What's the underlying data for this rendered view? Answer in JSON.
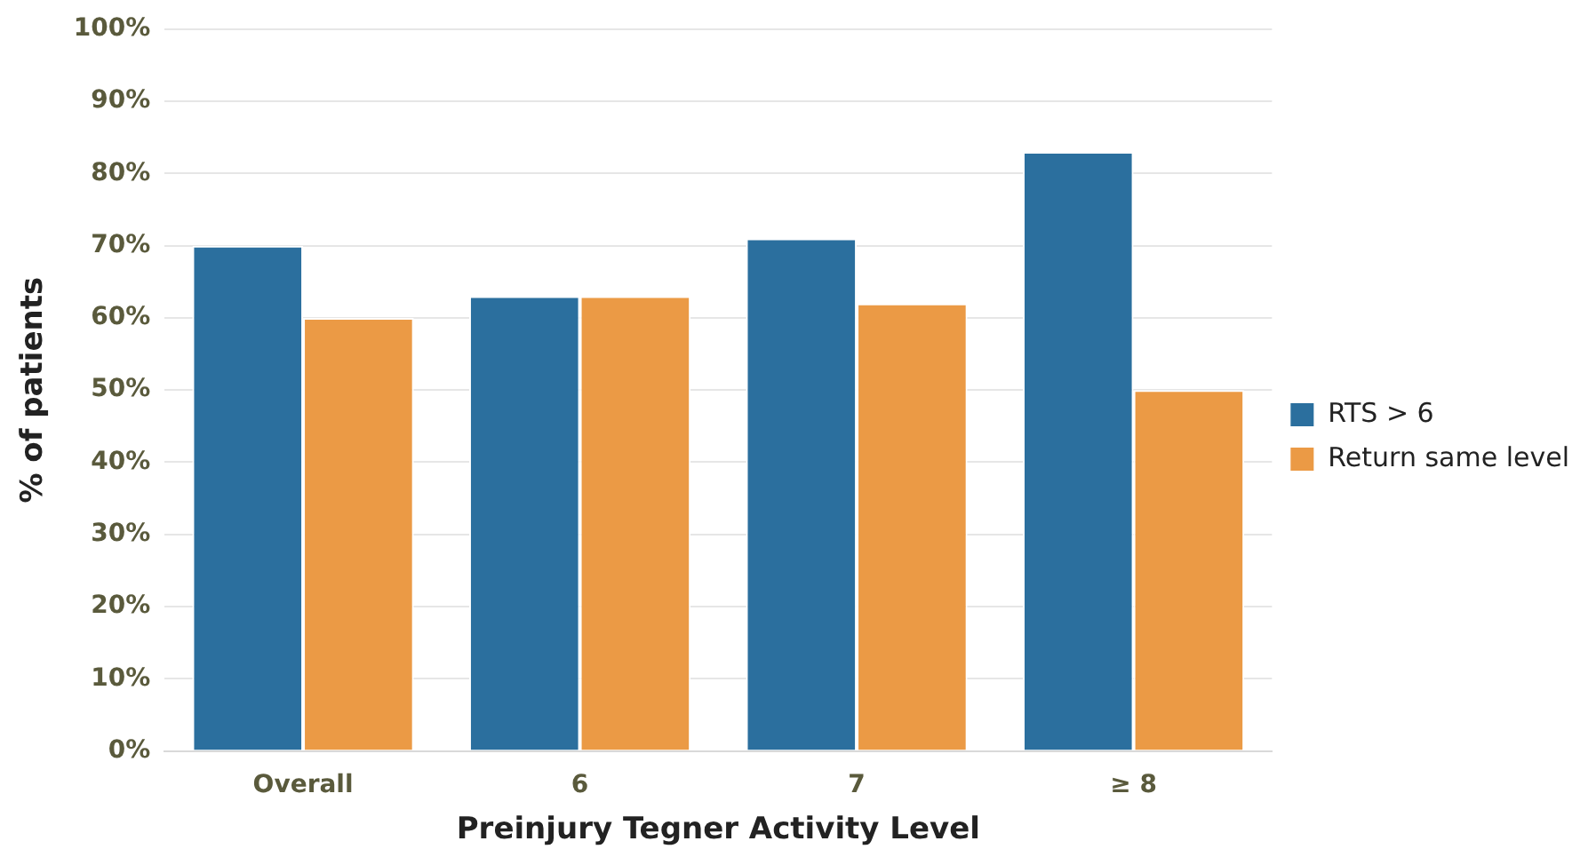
{
  "chart_data": {
    "type": "bar",
    "xlabel": "Preinjury Tegner Activity Level",
    "ylabel": "% of patients",
    "categories": [
      "Overall",
      "6",
      "7",
      "≥ 8"
    ],
    "series": [
      {
        "name": "RTS > 6",
        "color": "#2b6f9e",
        "values": [
          70,
          63,
          71,
          83
        ]
      },
      {
        "name": "Return same level",
        "color": "#eb9a45",
        "values": [
          60,
          63,
          62,
          50
        ]
      }
    ],
    "ylim": [
      0,
      100
    ],
    "yticks": [
      {
        "value": 0,
        "label": "0%"
      },
      {
        "value": 10,
        "label": "10%"
      },
      {
        "value": 20,
        "label": "20%"
      },
      {
        "value": 30,
        "label": "30%"
      },
      {
        "value": 40,
        "label": "40%"
      },
      {
        "value": 50,
        "label": "50%"
      },
      {
        "value": 60,
        "label": "60%"
      },
      {
        "value": 70,
        "label": "70%"
      },
      {
        "value": 80,
        "label": "80%"
      },
      {
        "value": 90,
        "label": "90%"
      },
      {
        "value": 100,
        "label": "100%"
      }
    ],
    "grid": "y",
    "legend": "right"
  }
}
